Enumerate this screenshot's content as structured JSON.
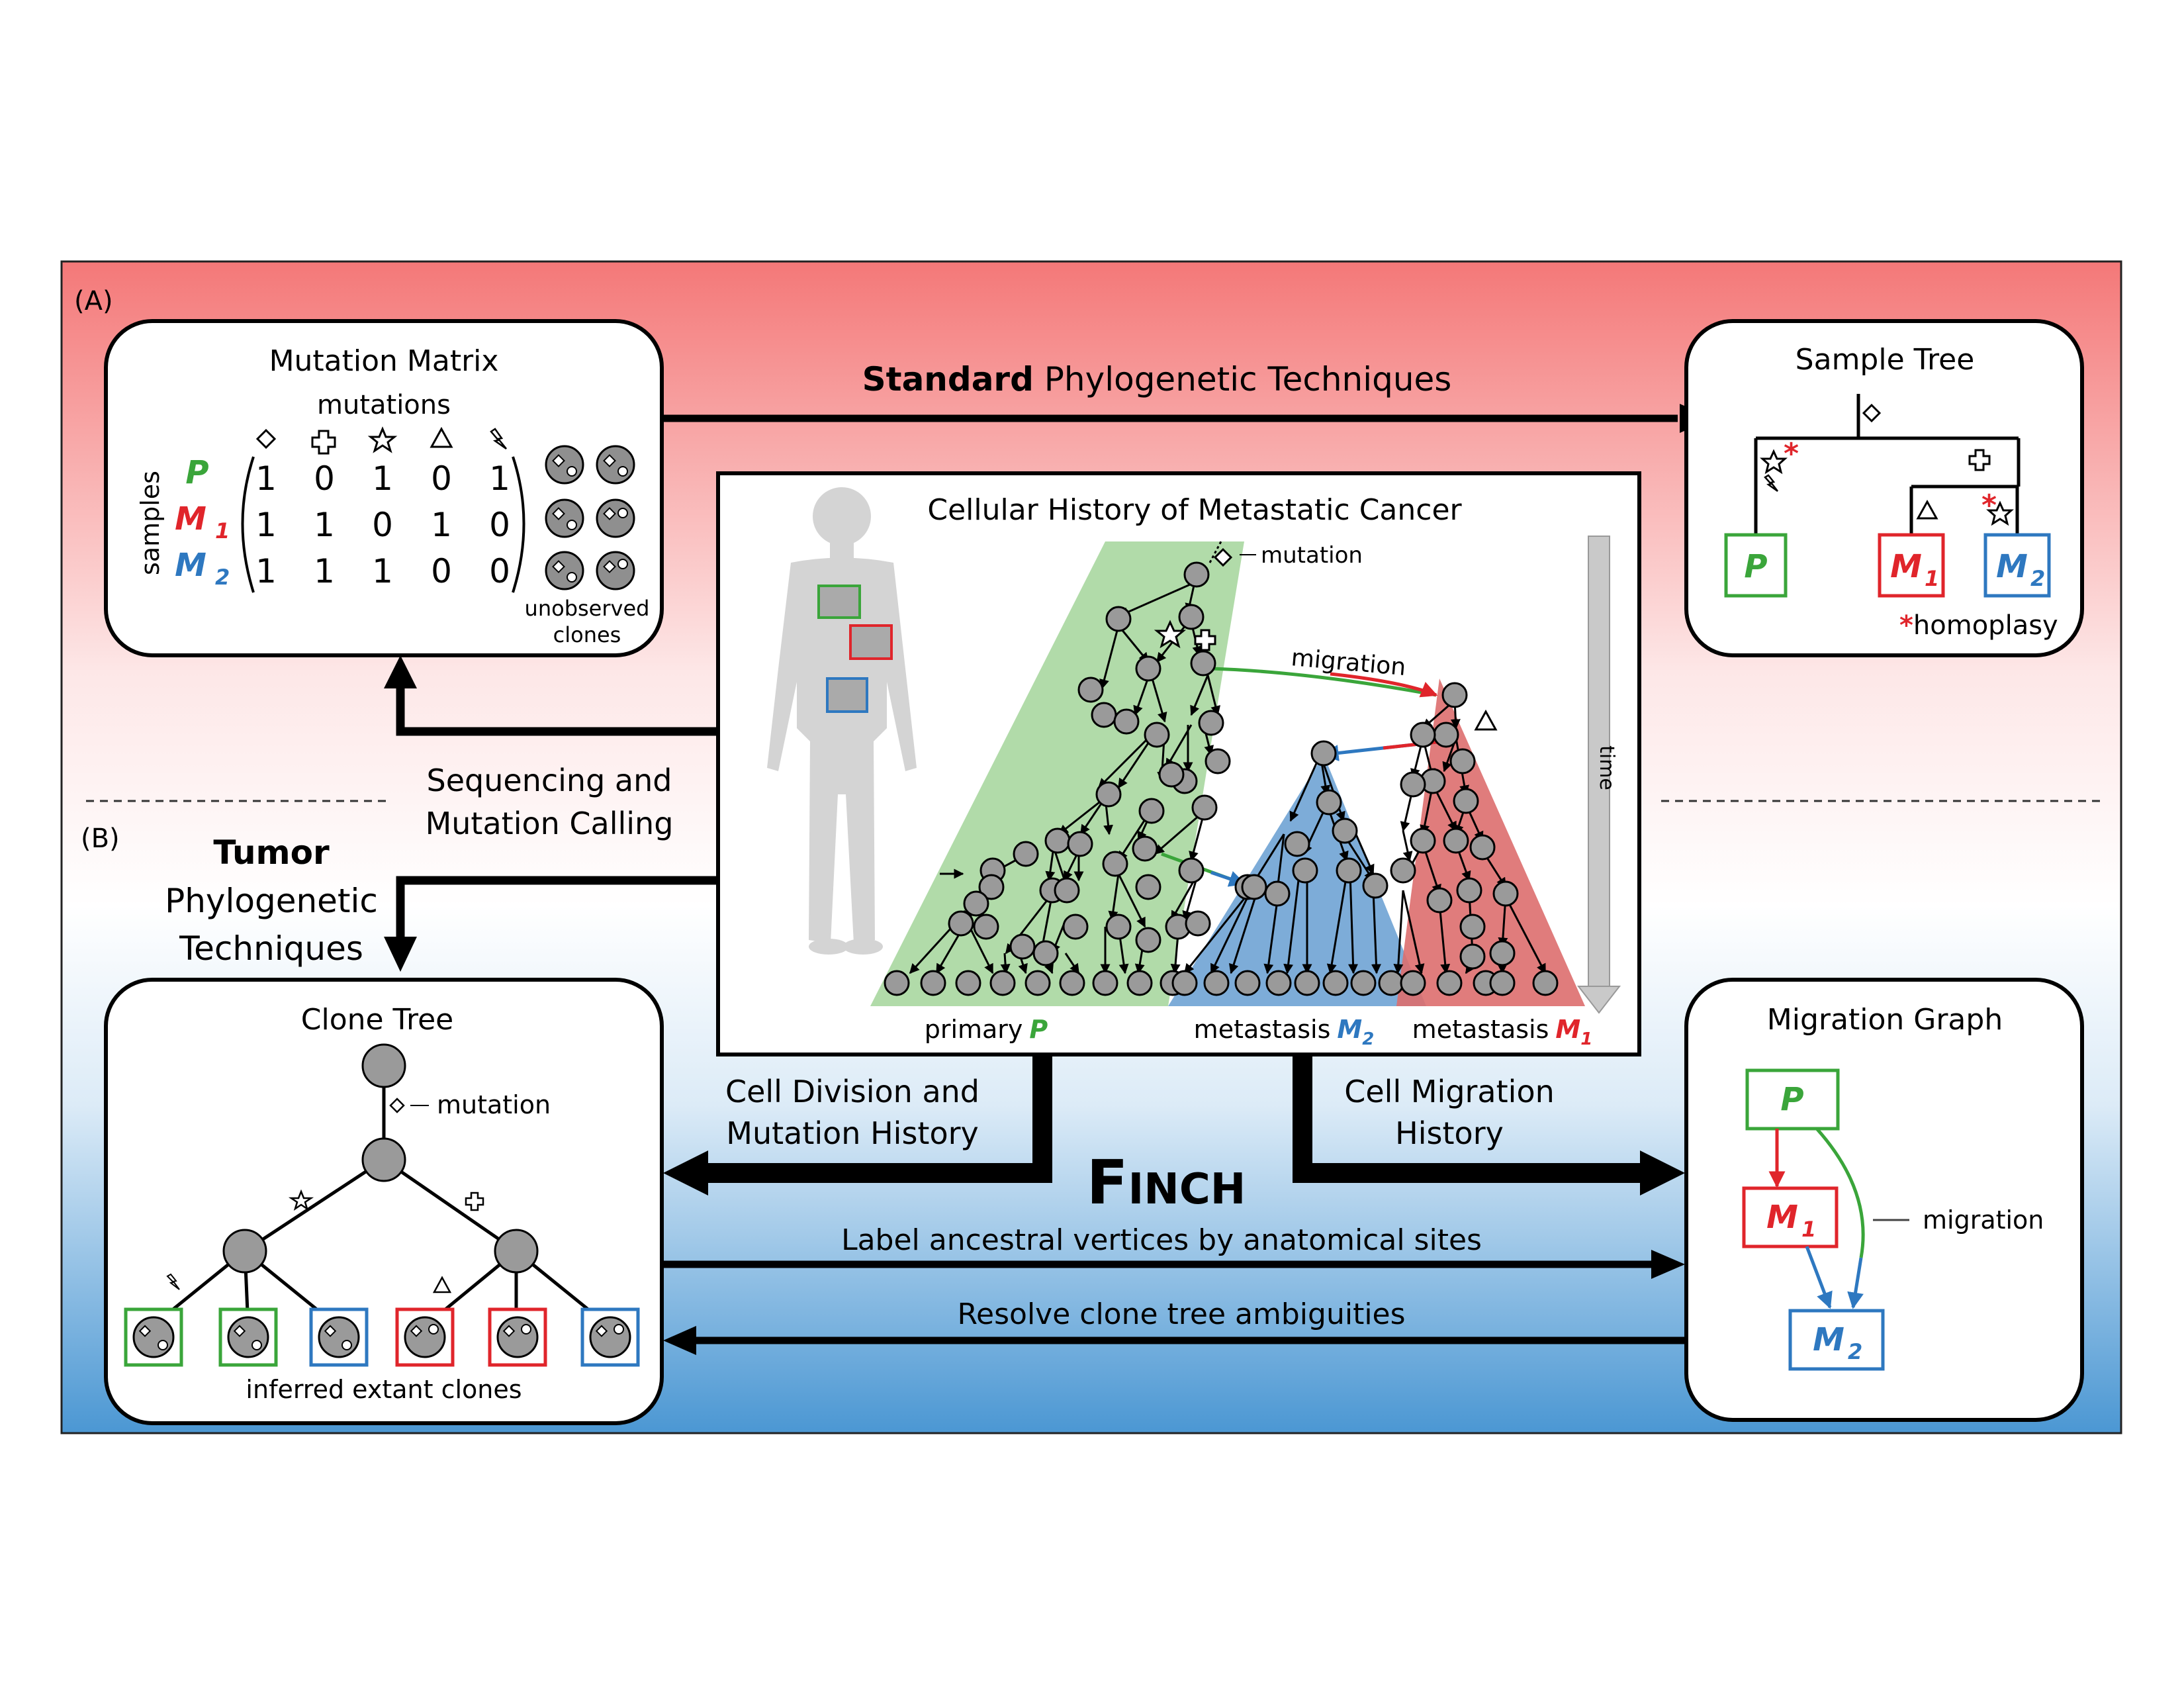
{
  "panel_labels": {
    "a": "(A)",
    "b": "(B)"
  },
  "mutation_matrix": {
    "title": "Mutation Matrix",
    "columns_label": "mutations",
    "rows_label": "samples",
    "rows": [
      {
        "name": "P",
        "color": "#3aa53a",
        "values": [
          "1",
          "0",
          "1",
          "0",
          "1"
        ]
      },
      {
        "name": "M",
        "sub": "1",
        "color": "#e0252b",
        "values": [
          "1",
          "1",
          "0",
          "1",
          "0"
        ]
      },
      {
        "name": "M",
        "sub": "2",
        "color": "#2e78c0",
        "values": [
          "1",
          "1",
          "1",
          "0",
          "0"
        ]
      }
    ],
    "clones_label_1": "unobserved",
    "clones_label_2": "clones"
  },
  "top_arrow": {
    "bold": "Standard",
    "rest": " Phylogenetic Techniques"
  },
  "sample_tree": {
    "title": "Sample Tree",
    "leaves": [
      {
        "name": "P",
        "color": "#3aa53a"
      },
      {
        "name": "M",
        "sub": "1",
        "color": "#e0252b"
      },
      {
        "name": "M",
        "sub": "2",
        "color": "#2e78c0"
      }
    ],
    "asterisk": "*",
    "homoplasy": "homoplasy"
  },
  "cell_history": {
    "title": "Cellular History of Metastatic Cancer",
    "mutation_label": "mutation",
    "migration_label": "migration",
    "time_label": "time",
    "primary_label": "primary",
    "primary_letter": "P",
    "met2_label": "metastasis",
    "met2_letter": "M",
    "met2_sub": "2",
    "met1_label": "metastasis",
    "met1_letter": "M",
    "met1_sub": "1",
    "colors": {
      "green": "#a9d7a0",
      "blue": "#6fa3d4",
      "red": "#dd6e6e"
    }
  },
  "seq_label": {
    "line1": "Sequencing and",
    "line2": "Mutation Calling"
  },
  "tumor_label": {
    "line1": "Tumor",
    "line2": "Phylogenetic",
    "line3": "Techniques"
  },
  "clone_tree": {
    "title": "Clone Tree",
    "mutation_label": "mutation",
    "footer": "inferred extant clones",
    "leaf_colors": [
      "#3aa53a",
      "#3aa53a",
      "#2e78c0",
      "#e0252b",
      "#e0252b",
      "#2e78c0"
    ]
  },
  "migration_graph": {
    "title": "Migration Graph",
    "nodes": [
      {
        "name": "P",
        "color": "#3aa53a"
      },
      {
        "name": "M",
        "sub": "1",
        "color": "#e0252b"
      },
      {
        "name": "M",
        "sub": "2",
        "color": "#2e78c0"
      }
    ],
    "legend": "migration"
  },
  "bottom": {
    "cell_division_1": "Cell Division and",
    "cell_division_2": "Mutation History",
    "cell_migration_1": "Cell Migration",
    "cell_migration_2": "History",
    "finch": "Finch",
    "label_arrow": "Label ancestral vertices by anatomical sites",
    "resolve_arrow": "Resolve clone tree ambiguities"
  }
}
